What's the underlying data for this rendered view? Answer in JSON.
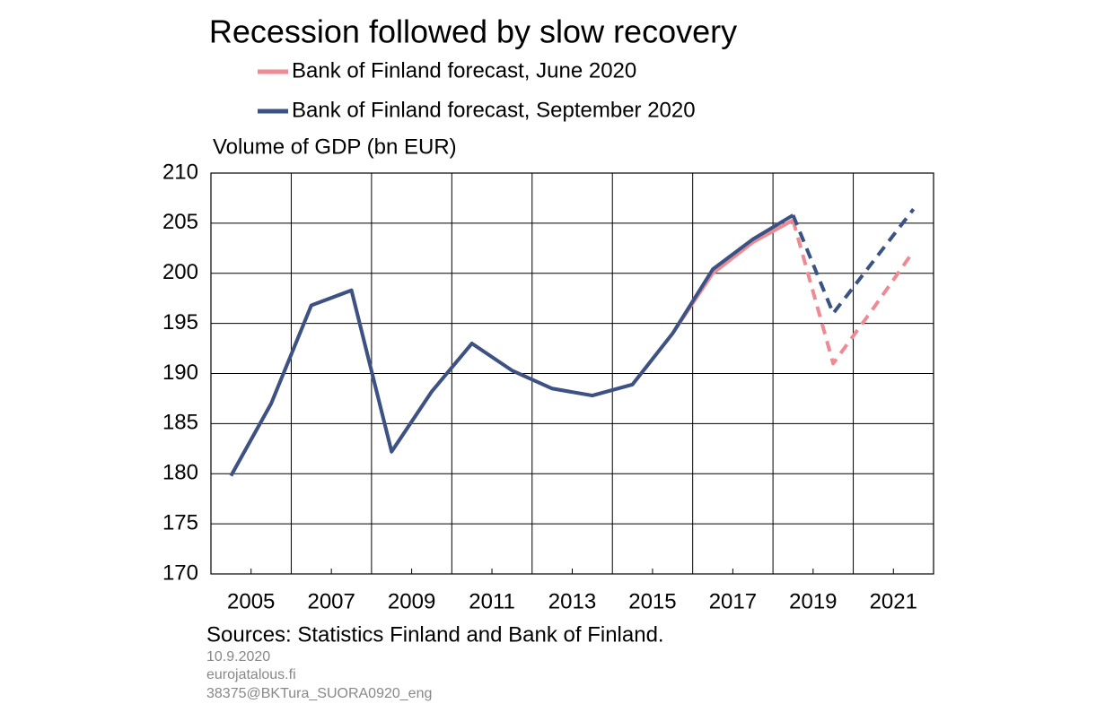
{
  "chart_data": {
    "type": "line",
    "title": "Recession followed by slow recovery",
    "y_label": "Volume of GDP (bn EUR)",
    "categories": [
      null,
      "2005",
      null,
      "2007",
      null,
      "2009",
      null,
      "2011",
      null,
      "2013",
      null,
      "2015",
      null,
      "2017",
      null,
      "2019",
      null,
      "2021"
    ],
    "series": [
      {
        "name": "Bank of Finland forecast, June 2020",
        "color": "#ee8a92",
        "values": [
          179.8,
          187.0,
          196.8,
          198.3,
          182.2,
          188.2,
          193.0,
          190.3,
          188.5,
          187.8,
          188.9,
          194.0,
          200.0,
          203.1,
          205.3,
          null,
          null,
          null
        ],
        "forecast_values": [
          null,
          null,
          null,
          null,
          null,
          null,
          null,
          null,
          null,
          null,
          null,
          null,
          null,
          null,
          205.3,
          191.0,
          196.5,
          202.2
        ]
      },
      {
        "name": "Bank of Finland forecast, September 2020",
        "color": "#3b5284",
        "values": [
          179.8,
          187.0,
          196.8,
          198.3,
          182.2,
          188.2,
          193.0,
          190.3,
          188.5,
          187.8,
          188.9,
          194.0,
          200.4,
          203.4,
          205.8,
          null,
          null,
          null
        ],
        "forecast_values": [
          null,
          null,
          null,
          null,
          null,
          null,
          null,
          null,
          null,
          null,
          null,
          null,
          null,
          null,
          205.8,
          196.0,
          201.2,
          206.4
        ]
      }
    ],
    "ylim": [
      170,
      210
    ],
    "yticks": [
      170,
      175,
      180,
      185,
      190,
      195,
      200,
      205,
      210
    ],
    "grid": true,
    "source": "Sources: Statistics Finland and Bank of Finland.",
    "footer": [
      "10.9.2020",
      "eurojatalous.fi",
      "38375@BKTura_SUORA0920_eng"
    ]
  }
}
